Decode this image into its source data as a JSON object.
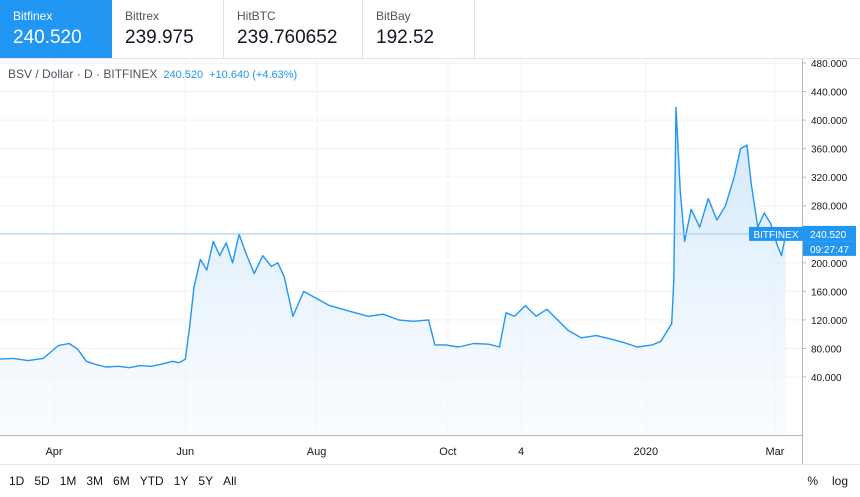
{
  "exchanges": [
    {
      "name": "Bitfinex",
      "price": "240.520",
      "active": true
    },
    {
      "name": "Bittrex",
      "price": "239.975",
      "active": false
    },
    {
      "name": "HitBTC",
      "price": "239.760652",
      "active": false
    },
    {
      "name": "BitBay",
      "price": "192.52",
      "active": false
    }
  ],
  "legend": {
    "symbol": "BSV / Dollar · D · BITFINEX",
    "last": "240.520",
    "change": "+10.640 (+4.63%)"
  },
  "price_label": {
    "exchange": "BITFINEX",
    "price": "240.520",
    "countdown": "09:27:47"
  },
  "chart_data": {
    "type": "area",
    "title": "BSV / Dollar · D · BITFINEX",
    "x_tick_labels": [
      "Apr",
      "Jun",
      "Aug",
      "Oct",
      "4",
      "2020",
      "Mar"
    ],
    "y_tick_labels": [
      "480.000",
      "440.000",
      "400.000",
      "360.000",
      "320.000",
      "280.000",
      "240.000",
      "200.000",
      "160.000",
      "120.000",
      "80.000",
      "40.000"
    ],
    "ylim": [
      20,
      480
    ],
    "xlim": [
      "2019-03-06",
      "2020-03-09"
    ],
    "current_price": 240.52,
    "colors": {
      "line": "#2196f3",
      "fill_top": "#c9e3fa",
      "fill_bottom": "#f4f9fe",
      "grid": "#f0f3fa",
      "current_line": "#9fc9f0"
    },
    "grid": true,
    "series": [
      {
        "x": [
          "2019-03-06",
          "2019-03-13",
          "2019-03-20",
          "2019-03-27",
          "2019-04-03",
          "2019-04-08",
          "2019-04-12",
          "2019-04-16",
          "2019-04-20",
          "2019-04-25",
          "2019-05-01",
          "2019-05-06",
          "2019-05-11",
          "2019-05-16",
          "2019-05-21",
          "2019-05-26",
          "2019-05-29",
          "2019-06-01",
          "2019-06-03",
          "2019-06-05",
          "2019-06-08",
          "2019-06-11",
          "2019-06-14",
          "2019-06-17",
          "2019-06-20",
          "2019-06-23",
          "2019-06-26",
          "2019-06-29",
          "2019-07-03",
          "2019-07-07",
          "2019-07-11",
          "2019-07-14",
          "2019-07-17",
          "2019-07-21",
          "2019-07-26",
          "2019-08-01",
          "2019-08-07",
          "2019-08-13",
          "2019-08-19",
          "2019-08-25",
          "2019-09-01",
          "2019-09-08",
          "2019-09-15",
          "2019-09-22",
          "2019-09-25",
          "2019-09-30",
          "2019-10-06",
          "2019-10-13",
          "2019-10-20",
          "2019-10-25",
          "2019-10-28",
          "2019-11-01",
          "2019-11-06",
          "2019-11-11",
          "2019-11-16",
          "2019-11-21",
          "2019-11-26",
          "2019-12-02",
          "2019-12-09",
          "2019-12-16",
          "2019-12-22",
          "2019-12-28",
          "2020-01-04",
          "2020-01-08",
          "2020-01-11",
          "2020-01-13",
          "2020-01-14",
          "2020-01-15",
          "2020-01-17",
          "2020-01-19",
          "2020-01-22",
          "2020-01-26",
          "2020-01-30",
          "2020-02-03",
          "2020-02-07",
          "2020-02-11",
          "2020-02-14",
          "2020-02-17",
          "2020-02-19",
          "2020-02-22",
          "2020-02-25",
          "2020-02-28",
          "2020-03-02",
          "2020-03-04",
          "2020-03-06"
        ],
        "y": [
          65,
          66,
          63,
          66,
          84,
          87,
          79,
          62,
          58,
          54,
          55,
          53,
          56,
          55,
          58,
          62,
          60,
          65,
          110,
          165,
          205,
          190,
          230,
          210,
          228,
          200,
          240,
          215,
          185,
          210,
          195,
          200,
          180,
          125,
          160,
          150,
          140,
          135,
          130,
          125,
          128,
          120,
          118,
          120,
          85,
          85,
          82,
          87,
          86,
          82,
          130,
          125,
          140,
          125,
          135,
          120,
          105,
          95,
          98,
          93,
          88,
          82,
          85,
          90,
          105,
          115,
          175,
          418,
          300,
          230,
          275,
          250,
          290,
          260,
          280,
          320,
          360,
          365,
          310,
          250,
          270,
          255,
          225,
          210,
          240.52
        ]
      }
    ]
  }
}
